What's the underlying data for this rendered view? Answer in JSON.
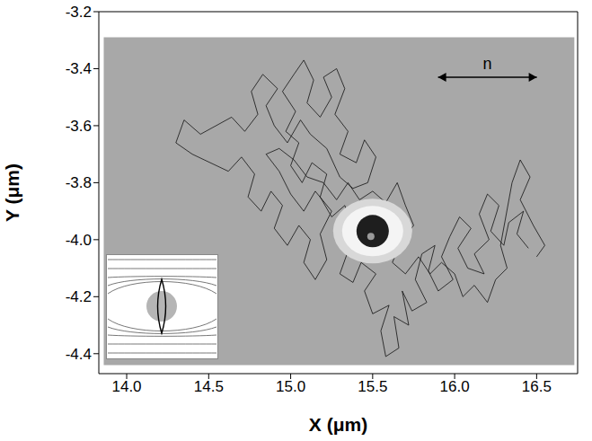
{
  "chart_data": {
    "type": "line",
    "x_label": "X (μm)",
    "y_label": "Y (μm)",
    "annotations": [
      "n"
    ],
    "color": "#111111",
    "line_style": "solid",
    "marker": "none",
    "xlim": [
      13.83,
      16.75
    ],
    "ylim": [
      -4.47,
      -3.2
    ],
    "xticks": [
      {
        "value": 14,
        "label": "14.0"
      },
      14.5,
      {
        "value": 15,
        "label": "15.0"
      },
      15.5,
      {
        "value": 16,
        "label": "16.0"
      },
      16.5
    ],
    "yticks": [
      -3.2,
      -3.4,
      -3.6,
      -3.8,
      {
        "value": -4,
        "label": "-4.0"
      },
      -4.2,
      -4.4
    ],
    "x": [
      16.45,
      16.38,
      16.42,
      16.33,
      16.3,
      16.22,
      16.27,
      16.2,
      16.15,
      16.21,
      16.12,
      16.18,
      16.08,
      16.02,
      16.1,
      16.03,
      15.97,
      15.92,
      15.99,
      15.9,
      15.84,
      15.88,
      15.8,
      15.76,
      15.83,
      15.74,
      15.68,
      15.72,
      15.63,
      15.66,
      15.58,
      15.55,
      15.6,
      15.5,
      15.45,
      15.52,
      15.43,
      15.38,
      15.3,
      15.35,
      15.28,
      15.36,
      15.45,
      15.52,
      15.6,
      15.57,
      15.48,
      15.4,
      15.33,
      15.25,
      15.18,
      15.22,
      15.13,
      15.07,
      15.0,
      15.05,
      14.97,
      15.03,
      14.95,
      15.02,
      15.08,
      15.14,
      15.1,
      15.18,
      15.25,
      15.2,
      15.28,
      15.33,
      15.27,
      15.35,
      15.3,
      15.4,
      15.45,
      15.52,
      15.47,
      15.38,
      15.3,
      15.22,
      15.12,
      15.06,
      14.98,
      14.9,
      14.85,
      14.92,
      14.83,
      14.76,
      14.8,
      14.72,
      14.64,
      14.45,
      14.35,
      14.3,
      14.4,
      14.62,
      14.7,
      14.78,
      14.74,
      14.82,
      14.88,
      14.95,
      14.9,
      14.98,
      15.05,
      15.12,
      15.08,
      15.15,
      15.22,
      15.18,
      15.25,
      15.15,
      15.08,
      15.0,
      14.93,
      14.85,
      14.93,
      15.02,
      15.1,
      15.2,
      15.28,
      15.35,
      15.42,
      15.5,
      15.58,
      15.65,
      15.7,
      15.75,
      15.68,
      15.62,
      15.7,
      15.78,
      15.85,
      15.92,
      16.0,
      16.05,
      16.12,
      16.2,
      16.25,
      16.32,
      16.28,
      16.35,
      16.4,
      16.46,
      16.4,
      16.48,
      16.55,
      16.5
    ],
    "values": [
      -4.03,
      -3.98,
      -3.9,
      -3.94,
      -4.02,
      -3.97,
      -3.88,
      -3.84,
      -3.91,
      -4.0,
      -4.05,
      -4.12,
      -4.1,
      -4.03,
      -3.96,
      -3.92,
      -3.99,
      -4.06,
      -4.14,
      -4.18,
      -4.11,
      -4.02,
      -4.05,
      -4.14,
      -4.22,
      -4.25,
      -4.18,
      -4.3,
      -4.27,
      -4.38,
      -4.41,
      -4.32,
      -4.23,
      -4.26,
      -4.18,
      -4.12,
      -4.08,
      -4.15,
      -4.12,
      -4.04,
      -3.98,
      -3.93,
      -3.97,
      -3.9,
      -3.95,
      -4.03,
      -4.05,
      -3.99,
      -3.88,
      -3.92,
      -3.85,
      -3.77,
      -3.73,
      -3.8,
      -3.74,
      -3.66,
      -3.62,
      -3.55,
      -3.48,
      -3.42,
      -3.37,
      -3.44,
      -3.52,
      -3.57,
      -3.5,
      -3.43,
      -3.4,
      -3.47,
      -3.56,
      -3.62,
      -3.7,
      -3.73,
      -3.65,
      -3.71,
      -3.8,
      -3.82,
      -3.78,
      -3.68,
      -3.63,
      -3.58,
      -3.66,
      -3.6,
      -3.53,
      -3.47,
      -3.42,
      -3.48,
      -3.56,
      -3.62,
      -3.57,
      -3.63,
      -3.58,
      -3.66,
      -3.7,
      -3.76,
      -3.71,
      -3.77,
      -3.85,
      -3.9,
      -3.83,
      -3.88,
      -3.96,
      -4.02,
      -3.95,
      -4.0,
      -4.08,
      -4.14,
      -4.07,
      -3.98,
      -3.9,
      -3.83,
      -3.9,
      -3.84,
      -3.76,
      -3.7,
      -3.68,
      -3.72,
      -3.78,
      -3.8,
      -3.86,
      -3.8,
      -3.86,
      -3.83,
      -3.87,
      -3.8,
      -3.88,
      -3.95,
      -4.0,
      -4.08,
      -4.12,
      -4.06,
      -4.12,
      -4.08,
      -4.12,
      -4.2,
      -4.16,
      -4.22,
      -4.14,
      -4.1,
      -4.02,
      -3.8,
      -3.72,
      -3.78,
      -3.86,
      -3.95,
      -4.02,
      -4.06
    ]
  }
}
